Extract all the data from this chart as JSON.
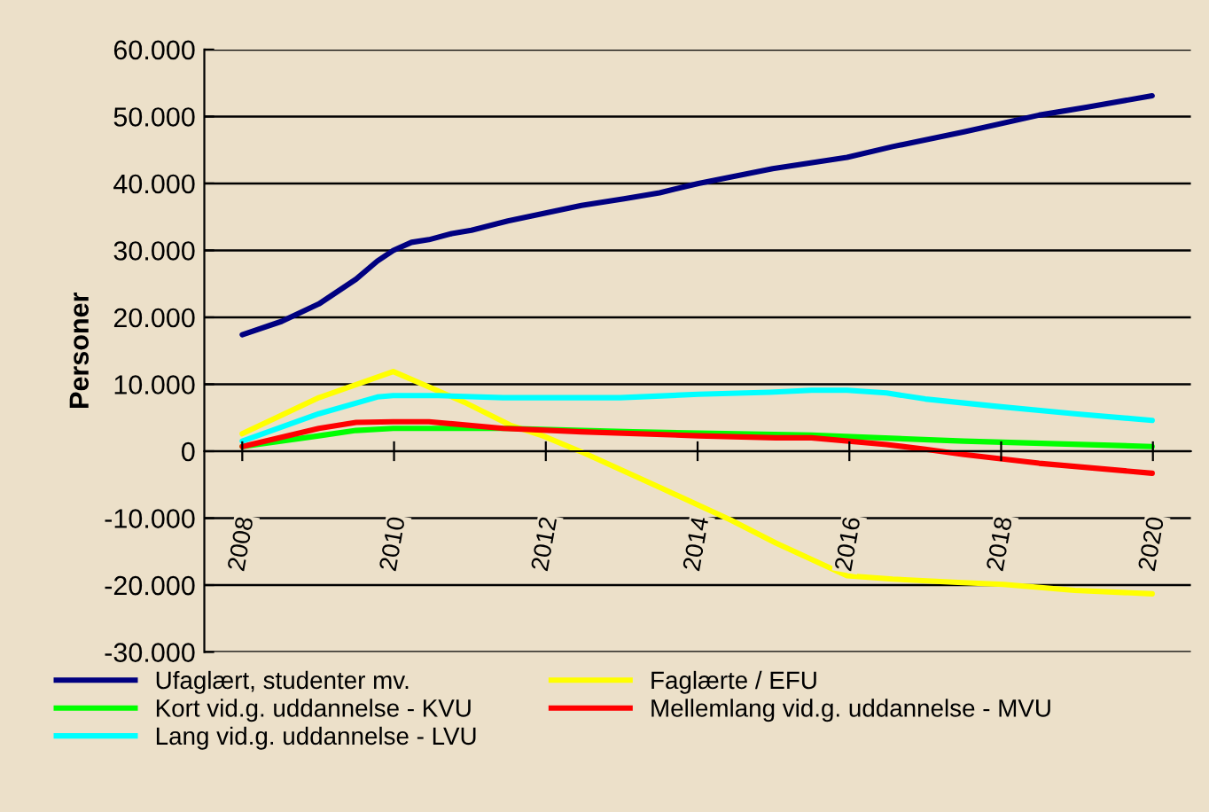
{
  "chart_data": {
    "type": "line",
    "ylabel": "Personer",
    "xlim": [
      2007.5,
      2020.5
    ],
    "xticks": [
      2008,
      2010,
      2012,
      2014,
      2016,
      2018,
      2020
    ],
    "ylim": [
      -30000,
      60000
    ],
    "yticks": [
      {
        "value": -30000,
        "label": "-30.000"
      },
      {
        "value": -20000,
        "label": "-20.000"
      },
      {
        "value": -10000,
        "label": "-10.000"
      },
      {
        "value": 0,
        "label": "0"
      },
      {
        "value": 10000,
        "label": "10.000"
      },
      {
        "value": 20000,
        "label": "20.000"
      },
      {
        "value": 30000,
        "label": "30.000"
      },
      {
        "value": 40000,
        "label": "40.000"
      },
      {
        "value": 50000,
        "label": "50.000"
      },
      {
        "value": 60000,
        "label": "60.000"
      }
    ],
    "grid": "y",
    "legend": "bottom",
    "marker": "none",
    "line_style": "solid",
    "series": [
      {
        "name": "Ufaglært, studenter mv.",
        "color": "#000080",
        "x": [
          2008,
          2008.52,
          2009.01,
          2009.5,
          2009.78,
          2009.99,
          2010.23,
          2010.46,
          2010.76,
          2011.02,
          2011.5,
          2012.47,
          2013.03,
          2013.5,
          2014.01,
          2014.99,
          2015.97,
          2016.57,
          2017.51,
          2018.5,
          2019.14,
          2019.99
        ],
        "values": [
          17400,
          19400,
          22000,
          25700,
          28400,
          30000,
          31200,
          31600,
          32500,
          33000,
          34400,
          36700,
          37700,
          38600,
          40000,
          42200,
          43900,
          45500,
          47700,
          50200,
          51400,
          53100
        ]
      },
      {
        "name": "Faglærte / EFU",
        "color": "#ffff00",
        "x": [
          2008,
          2009.01,
          2009.99,
          2010.93,
          2011.53,
          2011.96,
          2012.51,
          2013.5,
          2014.44,
          2015.03,
          2015.97,
          2016.57,
          2017.43,
          2018.03,
          2018.97,
          2019.99
        ],
        "values": [
          2600,
          8000,
          11900,
          7300,
          3900,
          2300,
          -300,
          -5400,
          -10300,
          -13700,
          -18600,
          -19100,
          -19600,
          -19900,
          -20800,
          -21300
        ]
      },
      {
        "name": "Kort vid.g. uddannelse - KVU",
        "color": "#00ff00",
        "x": [
          2008,
          2009.01,
          2009.5,
          2009.99,
          2010.59,
          2011.5,
          2013.15,
          2015.5,
          2017.51,
          2019.99
        ],
        "values": [
          700,
          2300,
          3100,
          3400,
          3400,
          3400,
          2900,
          2400,
          1500,
          700
        ]
      },
      {
        "name": "Mellemlang vid.g. uddannelse - MVU",
        "color": "#ff0000",
        "x": [
          2008,
          2009.01,
          2009.5,
          2009.99,
          2010.46,
          2011.44,
          2012.47,
          2014.01,
          2015.03,
          2015.5,
          2016.49,
          2017.0,
          2017.51,
          2018.5,
          2019.99
        ],
        "values": [
          700,
          3400,
          4300,
          4400,
          4400,
          3400,
          2900,
          2300,
          2000,
          2000,
          1000,
          300,
          -500,
          -1800,
          -3300
        ]
      },
      {
        "name": "Lang vid.g. uddannelse - LVU",
        "color": "#00ffff",
        "x": [
          2008,
          2009.01,
          2009.78,
          2009.99,
          2010.59,
          2011.44,
          2012.98,
          2014.01,
          2014.95,
          2015.5,
          2015.97,
          2016.49,
          2017.0,
          2017.94,
          2018.97,
          2019.99
        ],
        "values": [
          1500,
          5600,
          8100,
          8300,
          8300,
          8000,
          8000,
          8500,
          8800,
          9100,
          9100,
          8700,
          7800,
          6700,
          5600,
          4600
        ]
      }
    ]
  }
}
